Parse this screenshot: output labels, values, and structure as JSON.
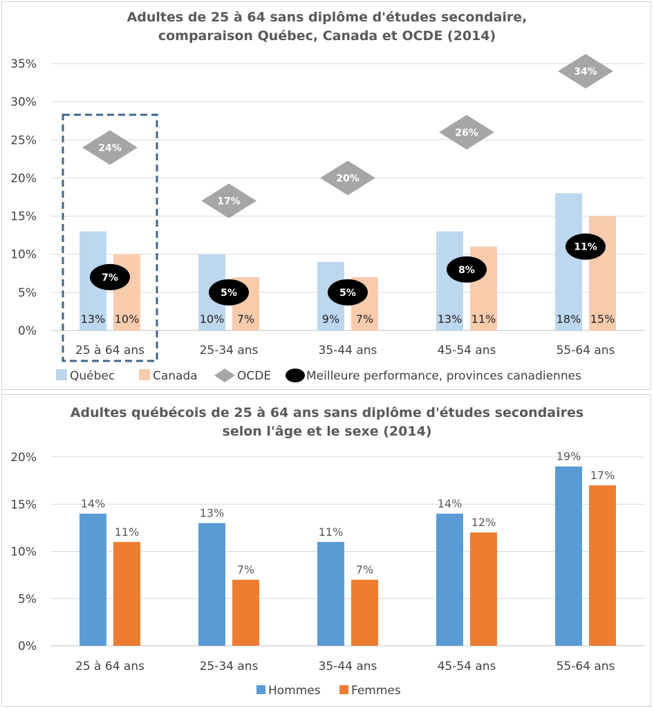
{
  "chart_data": [
    {
      "type": "bar",
      "title_lines": [
        "Adultes de 25 à 64 sans diplôme d'études secondaire,",
        "comparaison Québec, Canada et OCDE (2014)"
      ],
      "categories": [
        "25 à 64 ans",
        "25-34 ans",
        "35-44 ans",
        "45-54 ans",
        "55-64 ans"
      ],
      "series": [
        {
          "name": "Québec",
          "values": [
            13,
            10,
            9,
            13,
            18
          ],
          "labels": [
            "13%",
            "10%",
            "9%",
            "13%",
            "18%"
          ],
          "color": "#bdd7ee"
        },
        {
          "name": "Canada",
          "values": [
            10,
            7,
            7,
            11,
            15
          ],
          "labels": [
            "10%",
            "7%",
            "7%",
            "11%",
            "15%"
          ],
          "color": "#f8cbad"
        },
        {
          "name": "OCDE",
          "values": [
            24,
            17,
            20,
            26,
            34
          ],
          "labels": [
            "24%",
            "17%",
            "20%",
            "26%",
            "34%"
          ],
          "color": "#a6a6a6"
        },
        {
          "name": "Meilleure performance, provinces canadiennes",
          "values": [
            7,
            5,
            5,
            8,
            11
          ],
          "labels": [
            "7%",
            "5%",
            "5%",
            "8%",
            "11%"
          ],
          "color": "#000000"
        }
      ],
      "yticks": [
        "0%",
        "5%",
        "10%",
        "15%",
        "20%",
        "25%",
        "30%",
        "35%"
      ],
      "ylim": [
        0,
        35
      ],
      "highlight_color": "#3f6587"
    },
    {
      "type": "bar",
      "title_lines": [
        "Adultes québécois de 25 à 64 ans sans diplôme d'études secondaires",
        "selon l'âge et le sexe (2014)"
      ],
      "categories": [
        "25 à 64 ans",
        "25-34 ans",
        "35-44 ans",
        "45-54 ans",
        "55-64 ans"
      ],
      "series": [
        {
          "name": "Hommes",
          "values": [
            14,
            13,
            11,
            14,
            19
          ],
          "labels": [
            "14%",
            "13%",
            "11%",
            "14%",
            "19%"
          ],
          "color": "#5b9bd5"
        },
        {
          "name": "Femmes",
          "values": [
            11,
            7,
            7,
            12,
            17
          ],
          "labels": [
            "11%",
            "7%",
            "7%",
            "12%",
            "17%"
          ],
          "color": "#ed7d31"
        }
      ],
      "yticks": [
        "0%",
        "5%",
        "10%",
        "15%",
        "20%"
      ],
      "ylim": [
        0,
        20
      ]
    }
  ]
}
